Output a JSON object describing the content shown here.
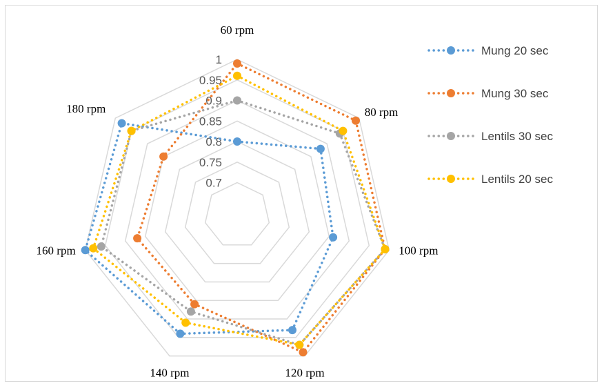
{
  "chart_data": {
    "type": "radar",
    "categories": [
      "60 rpm",
      "80 rpm",
      "100 rpm",
      "120 rpm",
      "140 rpm",
      "160 rpm",
      "180 rpm"
    ],
    "rlim": [
      0.7,
      1.0
    ],
    "ticks": [
      "0.7",
      "0.75",
      "0.8",
      "0.85",
      "0.9",
      "0.95",
      "1"
    ],
    "tick_values": [
      0.7,
      0.75,
      0.8,
      0.85,
      0.9,
      0.95,
      1.0
    ],
    "grid": true,
    "legend_position": "right",
    "series": [
      {
        "name": "Mung 20 sec",
        "color": "#5b9bd5",
        "values": [
          0.8,
          0.88,
          0.86,
          0.93,
          0.94,
          1.0,
          0.98
        ]
      },
      {
        "name": "Mung 30 sec",
        "color": "#ed7d31",
        "values": [
          0.99,
          0.99,
          0.99,
          0.99,
          0.86,
          0.87,
          0.85
        ]
      },
      {
        "name": "Lentils 30 sec",
        "color": "#a5a5a5",
        "values": [
          0.9,
          0.94,
          0.99,
          0.97,
          0.88,
          0.96,
          0.95
        ]
      },
      {
        "name": "Lentils 20 sec",
        "color": "#ffc000",
        "values": [
          0.96,
          0.95,
          0.99,
          0.97,
          0.91,
          0.98,
          0.95
        ]
      }
    ]
  }
}
